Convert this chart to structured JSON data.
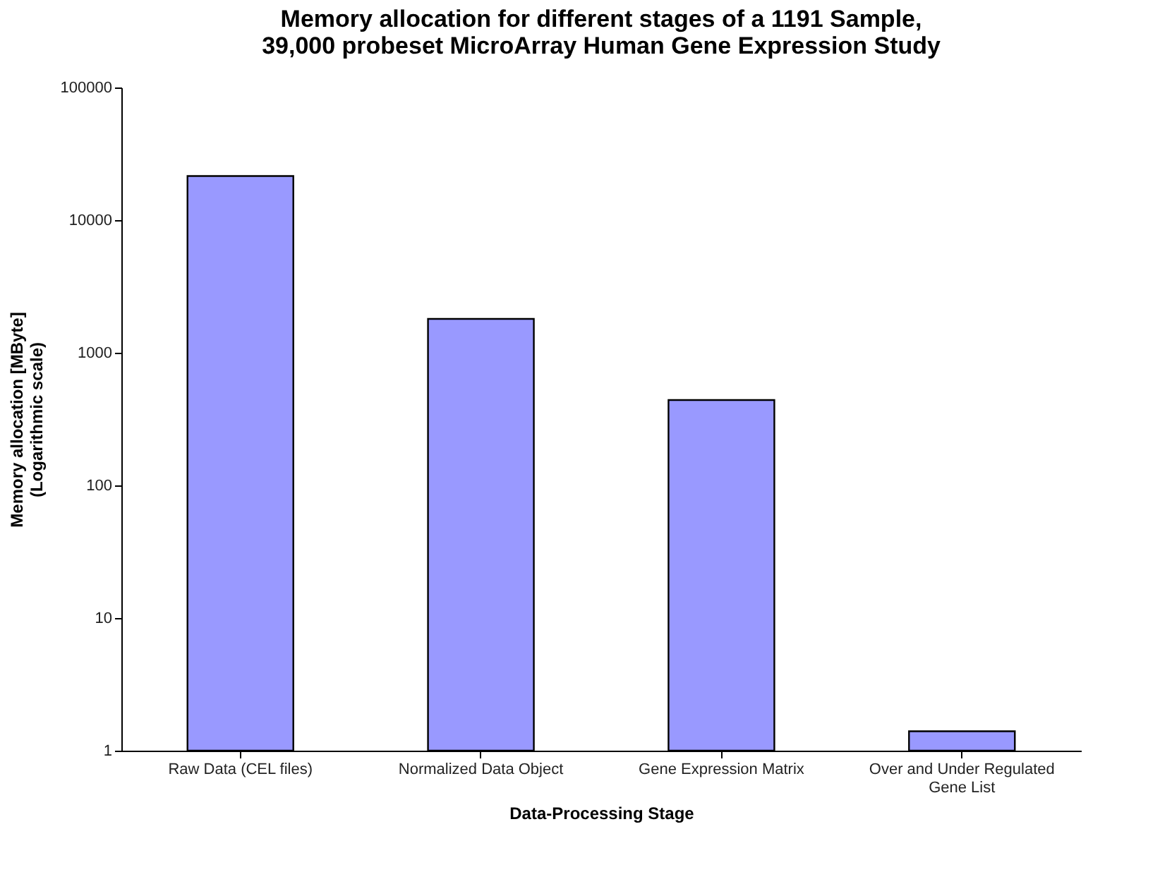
{
  "chart_data": {
    "type": "bar",
    "title": "Memory allocation for different stages of a 1191 Sample,\n39,000 probeset MicroArray Human Gene Expression Study",
    "xlabel": "Data-Processing Stage",
    "ylabel": "Memory allocation [MByte]\n(Logarithmic scale)",
    "categories": [
      "Raw Data (CEL files)",
      "Normalized Data Object",
      "Gene Expression Matrix",
      "Over and Under Regulated\nGene List"
    ],
    "values": [
      21500,
      1800,
      440,
      1.4
    ],
    "color": "#9999ff",
    "log": true,
    "ylim": [
      1,
      100000
    ],
    "yticks": [
      1,
      10,
      100,
      1000,
      10000,
      100000
    ],
    "grid": false
  }
}
